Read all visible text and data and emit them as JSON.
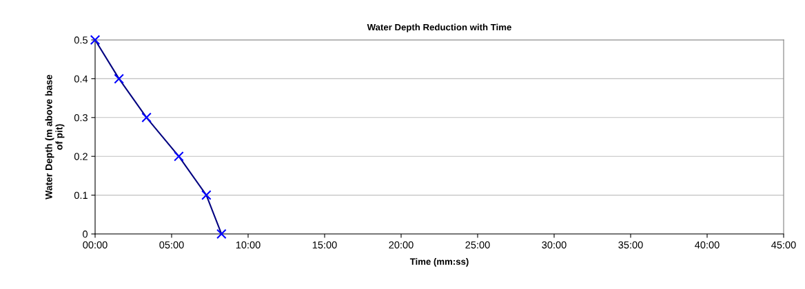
{
  "chart_data": {
    "type": "line",
    "title": "Water Depth Reduction with Time",
    "xlabel": "Time (mm:ss)",
    "ylabel": "Water Depth (m above base\nof pit)",
    "x": [
      0,
      1.56,
      3.36,
      5.47,
      7.27,
      8.26
    ],
    "series": [
      {
        "color": "#000080",
        "values": [
          0.5,
          0.4,
          0.3,
          0.2,
          0.1,
          0
        ]
      }
    ],
    "xlim": [
      0,
      45
    ],
    "xticks": [
      {
        "value": 0,
        "label": "00:00"
      },
      {
        "value": 5,
        "label": "05:00"
      },
      {
        "value": 10,
        "label": "10:00"
      },
      {
        "value": 15,
        "label": "15:00"
      },
      {
        "value": 20,
        "label": "20:00"
      },
      {
        "value": 25,
        "label": "25:00"
      },
      {
        "value": 30,
        "label": "30:00"
      },
      {
        "value": 35,
        "label": "35:00"
      },
      {
        "value": 40,
        "label": "40:00"
      },
      {
        "value": 45,
        "label": "45:00"
      }
    ],
    "ylim": [
      0,
      0.5
    ],
    "yticks": [
      0,
      0.1,
      0.2,
      0.3,
      0.4,
      0.5
    ],
    "grid": "y",
    "marker": "cross",
    "line_style": "solid"
  }
}
